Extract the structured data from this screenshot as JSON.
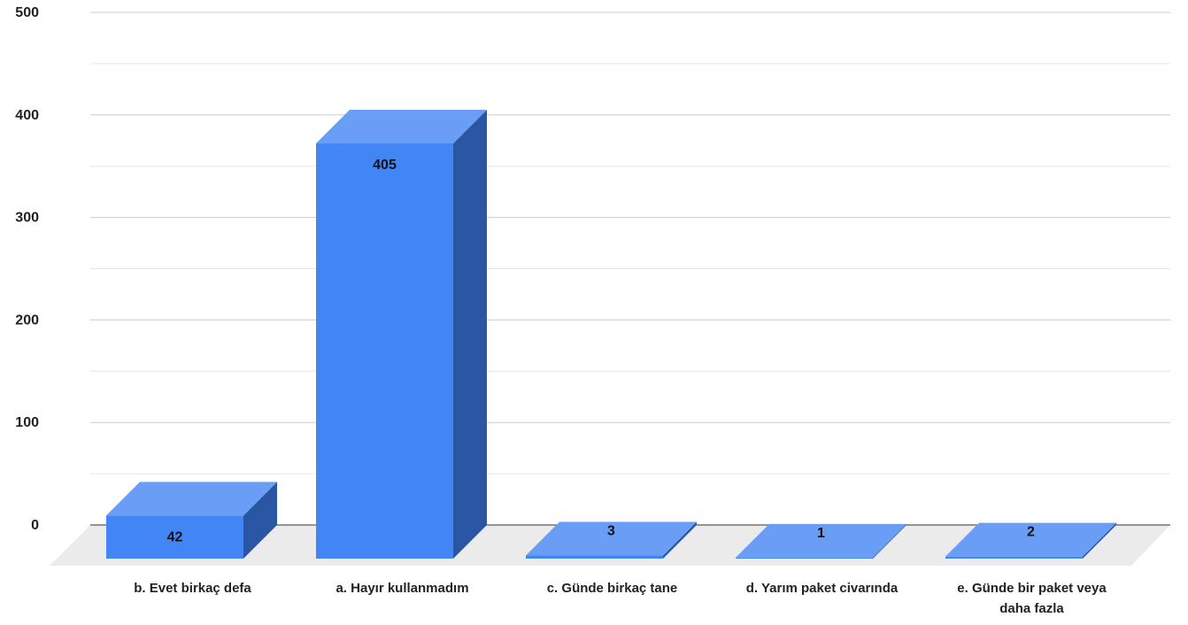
{
  "chart_data": {
    "type": "bar",
    "style": "3d",
    "categories": [
      [
        "b. Evet birkaç defa"
      ],
      [
        "a. Hayır kullanmadım"
      ],
      [
        "c. Günde birkaç  tane"
      ],
      [
        "d. Yarım paket civarında"
      ],
      [
        "e. Günde bir paket veya",
        "daha fazla"
      ]
    ],
    "values": [
      42,
      405,
      3,
      1,
      2
    ],
    "ylim": [
      0,
      500
    ],
    "yticks": [
      0,
      100,
      200,
      300,
      400,
      500
    ],
    "grid": true,
    "legend": "none",
    "colors": {
      "front": "#4285F4",
      "top": "#6A9EF6",
      "side": "#2B56A3",
      "floor": "#EBEBEB",
      "grid_major": "#CCCCCC",
      "grid_minor": "#E6E6E6",
      "baseline": "#333333"
    }
  }
}
